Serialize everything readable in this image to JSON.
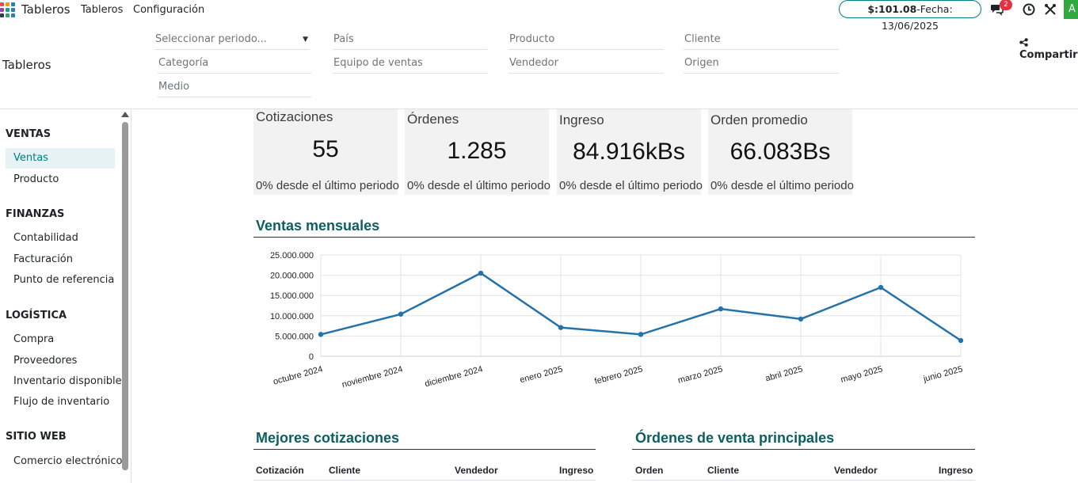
{
  "navbar": {
    "brand": "Tableros",
    "menu": [
      "Tableros",
      "Configuración"
    ],
    "rate_amount": "$:101.08",
    "rate_date": "-Fecha: 13/06/2025",
    "messages_badge": "2",
    "avatar_letter": "A",
    "icons": [
      "app-grid-icon",
      "chat-icon",
      "clock-icon",
      "tools-icon"
    ]
  },
  "control_panel": {
    "title": "Tableros",
    "share_label": "Compartir",
    "filters": {
      "period": "Seleccionar periodo...",
      "country": "País",
      "product": "Producto",
      "customer": "Cliente",
      "category": "Categoría",
      "sales_team": "Equipo de ventas",
      "salesperson": "Vendedor",
      "origin": "Origen",
      "medium": "Medio"
    }
  },
  "sidebar": {
    "sections": [
      {
        "title": "VENTAS",
        "items": [
          "Ventas",
          "Producto"
        ]
      },
      {
        "title": "FINANZAS",
        "items": [
          "Contabilidad",
          "Facturación",
          "Punto de referencia"
        ]
      },
      {
        "title": "LOGÍSTICA",
        "items": [
          "Compra",
          "Proveedores",
          "Inventario disponible",
          "Flujo de inventario"
        ]
      },
      {
        "title": "SITIO WEB",
        "items": [
          "Comercio electrónico"
        ]
      }
    ],
    "active_item": "Ventas"
  },
  "kpis": [
    {
      "title": "Cotizaciones",
      "value": "55",
      "sub": "0% desde el último periodo"
    },
    {
      "title": "Órdenes",
      "value": "1.285",
      "sub": "0% desde el último periodo"
    },
    {
      "title": "Ingreso",
      "value": "84.916kBs",
      "sub": "0% desde el último periodo"
    },
    {
      "title": "Orden promedio",
      "value": "66.083Bs",
      "sub": "0% desde el último periodo"
    }
  ],
  "monthly_sales": {
    "title": "Ventas mensuales"
  },
  "chart_data": {
    "type": "line",
    "title": "",
    "xlabel": "",
    "ylabel": "",
    "categories": [
      "octubre 2024",
      "noviembre 2024",
      "diciembre 2024",
      "enero 2025",
      "febrero 2025",
      "marzo 2025",
      "abril 2025",
      "mayo 2025",
      "junio 2025"
    ],
    "series": [
      {
        "values": [
          5400000,
          10400000,
          20500000,
          7100000,
          5400000,
          11700000,
          9200000,
          17000000,
          3900000
        ],
        "color": "#2372a9"
      }
    ],
    "ylim": [
      0,
      25000000
    ],
    "yticks": [
      "0",
      "5.000.000",
      "10.000.000",
      "15.000.000",
      "20.000.000",
      "25.000.000"
    ],
    "grid": true,
    "legend": "none"
  },
  "top_quotes": {
    "title": "Mejores cotizaciones",
    "columns": [
      "Cotización",
      "Cliente",
      "Vendedor",
      "Ingreso"
    ]
  },
  "top_orders": {
    "title": "Órdenes de venta principales",
    "columns": [
      "Orden",
      "Cliente",
      "Vendedor",
      "Ingreso"
    ]
  },
  "colors": {
    "accent": "#017e84",
    "heading": "#0c5e63",
    "line": "#2372a9",
    "badge": "#e0323f",
    "avatar": "#2eaa3f"
  }
}
